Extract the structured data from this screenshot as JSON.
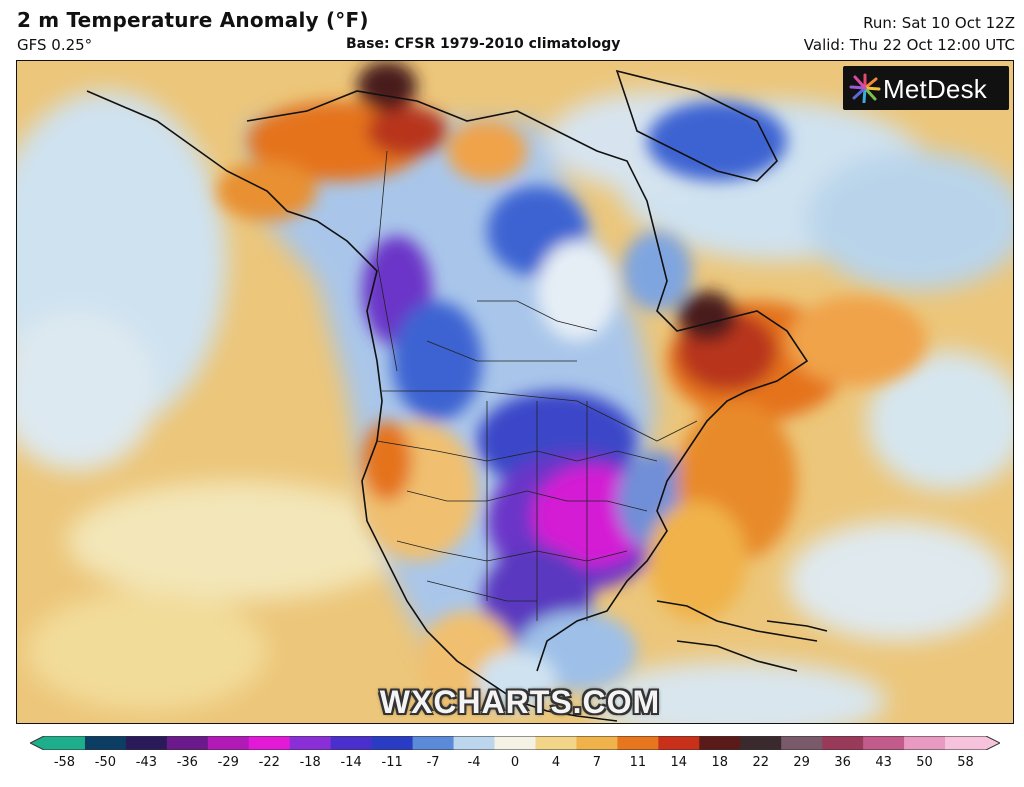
{
  "header": {
    "title": "2 m Temperature Anomaly (°F)",
    "model": "GFS 0.25°",
    "base": "Base: CFSR 1979-2010 climatology",
    "run": "Run: Sat 10 Oct 12Z",
    "valid": "Valid: Thu 22 Oct 12:00 UTC"
  },
  "branding": {
    "logo_text": "MetDesk",
    "watermark": "WXCHARTS.COM"
  },
  "legend": {
    "ticks": [
      "-58",
      "-50",
      "-43",
      "-36",
      "-29",
      "-22",
      "-18",
      "-14",
      "-11",
      "-7",
      "-4",
      "0",
      "4",
      "7",
      "11",
      "14",
      "18",
      "22",
      "29",
      "36",
      "43",
      "50",
      "58"
    ],
    "colors": [
      "#1fae8c",
      "#0c3d63",
      "#2a1a5a",
      "#6a1a8a",
      "#b21ab8",
      "#e21ad8",
      "#8a2fd8",
      "#4b2fcc",
      "#2a3cc4",
      "#5a8ad8",
      "#bcd6ee",
      "#f4f2e4",
      "#f3d58a",
      "#f0b24a",
      "#e8761e",
      "#c8301a",
      "#5a1a18",
      "#3a2a2e",
      "#7a5a6a",
      "#9a3a5a",
      "#c25a8a",
      "#e89ac0",
      "#f6c2dc"
    ]
  },
  "map": {
    "colors": {
      "ocean_warm": "#ecc67a",
      "ocean_pale": "#f3e6b8",
      "cool_pale": "#cfe2f0",
      "cold_blue": "#3e64d2",
      "very_cold": "#6a34c8",
      "extreme_cold": "#d41ed4",
      "hot_orange": "#e5731f",
      "hot_red": "#b8361c",
      "hot_dark": "#4a1f1f",
      "coast": "#111111"
    }
  }
}
